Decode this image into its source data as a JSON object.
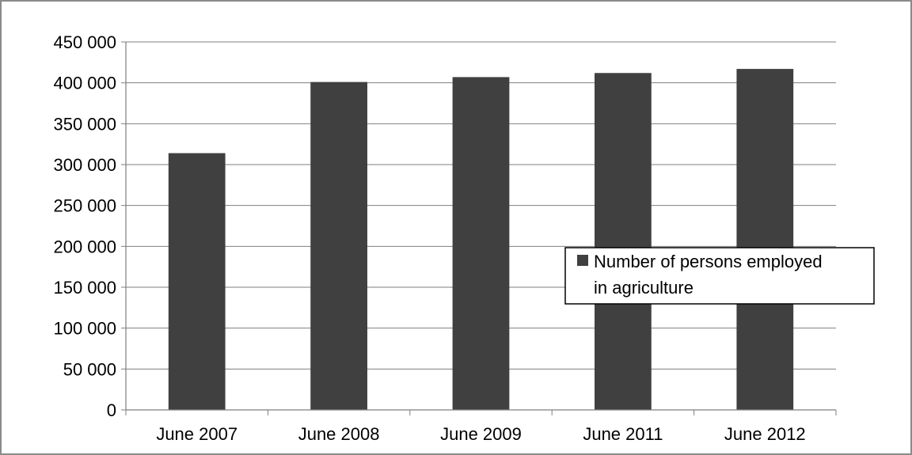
{
  "chart_data": {
    "type": "bar",
    "categories": [
      "June 2007",
      "June 2008",
      "June 2009",
      "June 2011",
      "June 2012"
    ],
    "series": [
      {
        "name": "Number of persons employed in agriculture",
        "values": [
          314000,
          401000,
          407000,
          412000,
          417000
        ],
        "color": "#404040"
      }
    ],
    "y_ticks": [
      "0",
      "50 000",
      "100 000",
      "150 000",
      "200 000",
      "250 000",
      "300 000",
      "350 000",
      "400 000",
      "450 000"
    ],
    "ylim": [
      0,
      450000
    ],
    "y_tick_step": 50000,
    "grid": true,
    "legend_position": "right",
    "legend_lines": [
      "Number of persons employed",
      "in agriculture"
    ]
  }
}
